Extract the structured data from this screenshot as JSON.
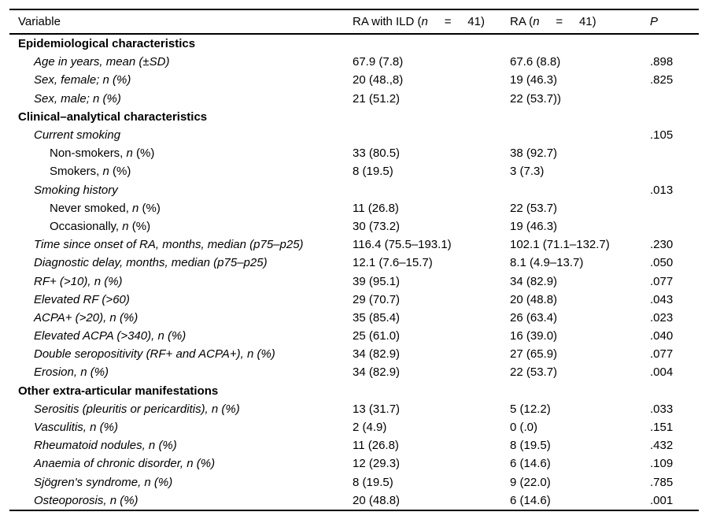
{
  "page": {
    "background_color": "#ffffff",
    "text_color": "#000000",
    "rule_color": "#000000"
  },
  "table": {
    "columns": [
      {
        "id": "variable",
        "segments": [
          [
            "Variable",
            false
          ]
        ]
      },
      {
        "id": "ra_with_ild",
        "segments": [
          [
            "RA with ILD (",
            false
          ],
          [
            "n",
            true
          ],
          [
            "     =     41)",
            false
          ]
        ]
      },
      {
        "id": "ra",
        "segments": [
          [
            "RA (",
            false
          ],
          [
            "n",
            true
          ],
          [
            "     =     41)",
            false
          ]
        ]
      },
      {
        "id": "p",
        "segments": [
          [
            "P",
            true
          ]
        ]
      }
    ],
    "rows": [
      {
        "type": "section",
        "label": "Epidemiological characteristics"
      },
      {
        "type": "item",
        "indent": 1,
        "segs": [
          [
            "Age in years, mean (±SD)",
            true
          ]
        ],
        "ra_ild": "67.9 (7.8)",
        "ra": "67.6 (8.8)",
        "p": ".898"
      },
      {
        "type": "item",
        "indent": 1,
        "segs": [
          [
            "Sex, female; n (%)",
            true
          ]
        ],
        "ra_ild": "20 (48.,8)",
        "ra": "19 (46.3)",
        "p": ".825"
      },
      {
        "type": "item",
        "indent": 1,
        "segs": [
          [
            "Sex, male; n (%)",
            true
          ]
        ],
        "ra_ild": "21 (51.2)",
        "ra": "22 (53.7))",
        "p": ""
      },
      {
        "type": "section",
        "label": "Clinical–analytical characteristics"
      },
      {
        "type": "item",
        "indent": 1,
        "segs": [
          [
            "Current smoking",
            true
          ]
        ],
        "ra_ild": "",
        "ra": "",
        "p": ".105"
      },
      {
        "type": "item",
        "indent": 2,
        "segs": [
          [
            "Non-smokers, ",
            false
          ],
          [
            "n",
            true
          ],
          [
            " (%)",
            false
          ]
        ],
        "ra_ild": "33 (80.5)",
        "ra": "38 (92.7)",
        "p": ""
      },
      {
        "type": "item",
        "indent": 2,
        "segs": [
          [
            "Smokers, ",
            false
          ],
          [
            "n",
            true
          ],
          [
            " (%)",
            false
          ]
        ],
        "ra_ild": "8 (19.5)",
        "ra": "3 (7.3)",
        "p": ""
      },
      {
        "type": "item",
        "indent": 1,
        "segs": [
          [
            "Smoking history",
            true
          ]
        ],
        "ra_ild": "",
        "ra": "",
        "p": ".013"
      },
      {
        "type": "item",
        "indent": 2,
        "segs": [
          [
            "Never smoked, ",
            false
          ],
          [
            "n",
            true
          ],
          [
            " (%)",
            false
          ]
        ],
        "ra_ild": "11 (26.8)",
        "ra": "22 (53.7)",
        "p": ""
      },
      {
        "type": "item",
        "indent": 2,
        "segs": [
          [
            "Occasionally, ",
            false
          ],
          [
            "n",
            true
          ],
          [
            " (%)",
            false
          ]
        ],
        "ra_ild": "30 (73.2)",
        "ra": "19 (46.3)",
        "p": ""
      },
      {
        "type": "item",
        "indent": 1,
        "segs": [
          [
            "Time since onset of RA, months, median (p75–p25)",
            true
          ]
        ],
        "ra_ild": "116.4 (75.5–193.1)",
        "ra": "102.1 (71.1–132.7)",
        "p": ".230"
      },
      {
        "type": "item",
        "indent": 1,
        "segs": [
          [
            "Diagnostic delay, months, median (p75–p25)",
            true
          ]
        ],
        "ra_ild": "12.1 (7.6–15.7)",
        "ra": "8.1 (4.9–13.7)",
        "p": ".050"
      },
      {
        "type": "item",
        "indent": 1,
        "segs": [
          [
            "RF+ (>10), n (%)",
            true
          ]
        ],
        "ra_ild": "39 (95.1)",
        "ra": "34 (82.9)",
        "p": ".077"
      },
      {
        "type": "item",
        "indent": 1,
        "segs": [
          [
            "Elevated RF (>60)",
            true
          ]
        ],
        "ra_ild": "29 (70.7)",
        "ra": "20 (48.8)",
        "p": ".043"
      },
      {
        "type": "item",
        "indent": 1,
        "segs": [
          [
            "ACPA+ (>20), n (%)",
            true
          ]
        ],
        "ra_ild": "35 (85.4)",
        "ra": "26 (63.4)",
        "p": ".023"
      },
      {
        "type": "item",
        "indent": 1,
        "segs": [
          [
            "Elevated ACPA (>340), n (%)",
            true
          ]
        ],
        "ra_ild": "25 (61.0)",
        "ra": "16 (39.0)",
        "p": ".040"
      },
      {
        "type": "item",
        "indent": 1,
        "segs": [
          [
            "Double seropositivity (RF+ and ACPA+), n (%)",
            true
          ]
        ],
        "ra_ild": "34 (82.9)",
        "ra": "27 (65.9)",
        "p": ".077"
      },
      {
        "type": "item",
        "indent": 1,
        "segs": [
          [
            "Erosion, n (%)",
            true
          ]
        ],
        "ra_ild": "34 (82.9)",
        "ra": "22 (53.7)",
        "p": ".004"
      },
      {
        "type": "section",
        "label": "Other extra-articular manifestations"
      },
      {
        "type": "item",
        "indent": 1,
        "segs": [
          [
            "Serositis (pleuritis or pericarditis), n (%)",
            true
          ]
        ],
        "ra_ild": "13 (31.7)",
        "ra": "5 (12.2)",
        "p": ".033"
      },
      {
        "type": "item",
        "indent": 1,
        "segs": [
          [
            "Vasculitis, n (%)",
            true
          ]
        ],
        "ra_ild": "2 (4.9)",
        "ra": "0 (.0)",
        "p": ".151"
      },
      {
        "type": "item",
        "indent": 1,
        "segs": [
          [
            "Rheumatoid nodules, n (%)",
            true
          ]
        ],
        "ra_ild": "11 (26.8)",
        "ra": "8 (19.5)",
        "p": ".432"
      },
      {
        "type": "item",
        "indent": 1,
        "segs": [
          [
            "Anaemia of chronic disorder, n (%)",
            true
          ]
        ],
        "ra_ild": "12 (29.3)",
        "ra": "6 (14.6)",
        "p": ".109"
      },
      {
        "type": "item",
        "indent": 1,
        "segs": [
          [
            "Sjögren's syndrome, n (%)",
            true
          ]
        ],
        "ra_ild": "8 (19.5)",
        "ra": "9 (22.0)",
        "p": ".785"
      },
      {
        "type": "item",
        "indent": 1,
        "segs": [
          [
            "Osteoporosis, n (%)",
            true
          ]
        ],
        "ra_ild": "20 (48.8)",
        "ra": "6 (14.6)",
        "p": ".001"
      }
    ]
  }
}
